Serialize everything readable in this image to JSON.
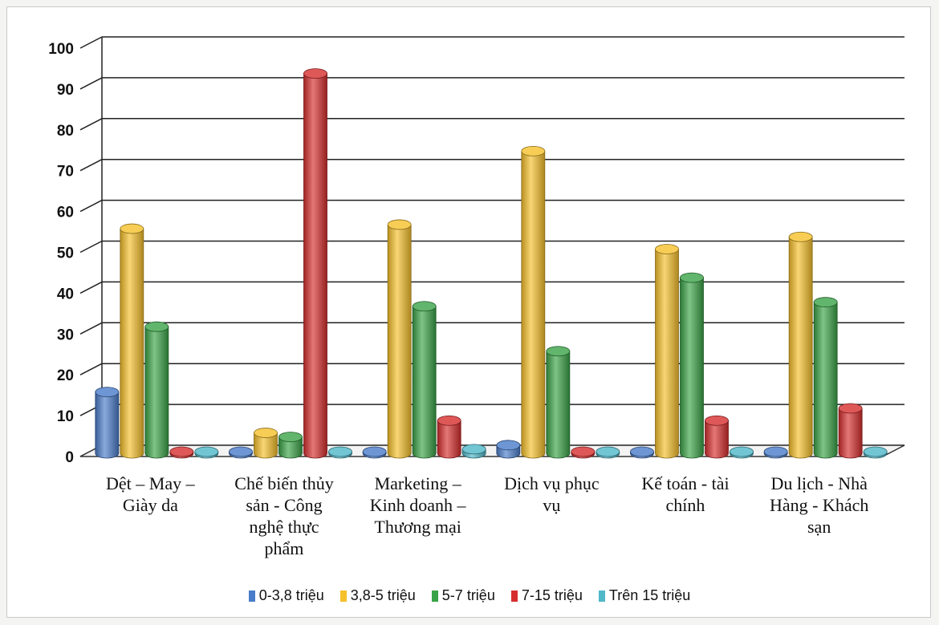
{
  "chart_data": {
    "type": "bar",
    "title": "",
    "xlabel": "",
    "ylabel": "",
    "ylim": [
      0,
      100
    ],
    "y_ticks": [
      "0",
      "10",
      "20",
      "30",
      "40",
      "50",
      "60",
      "70",
      "80",
      "90",
      "100"
    ],
    "grid": true,
    "legend_position": "bottom",
    "categories": [
      [
        "Dệt – May –",
        "Giày da"
      ],
      [
        "Chế biến thủy",
        "sản - Công",
        "nghệ thực",
        "phẩm"
      ],
      [
        "Marketing –",
        "Kinh doanh –",
        "Thương mại"
      ],
      [
        "Dịch vụ phục",
        "vụ"
      ],
      [
        "Kế toán - tài",
        "chính"
      ],
      [
        "Du lịch - Nhà",
        "Hàng - Khách",
        "sạn"
      ]
    ],
    "series": [
      {
        "name": "0-3,8 triệu",
        "color": "#4a7cc9",
        "values": [
          15,
          0,
          0,
          2,
          0,
          0
        ]
      },
      {
        "name": "3,8-5 triệu",
        "color": "#f5c02b",
        "values": [
          55,
          5,
          56,
          74,
          50,
          53
        ]
      },
      {
        "name": "5-7 triệu",
        "color": "#3aa347",
        "values": [
          31,
          4,
          36,
          25,
          43,
          37
        ]
      },
      {
        "name": "7-15 triệu",
        "color": "#d62e2e",
        "values": [
          0,
          93,
          8,
          0,
          8,
          11
        ]
      },
      {
        "name": "Trên 15 triệu",
        "color": "#4fb8c9",
        "values": [
          0,
          0,
          1,
          0,
          0,
          0
        ]
      }
    ]
  }
}
